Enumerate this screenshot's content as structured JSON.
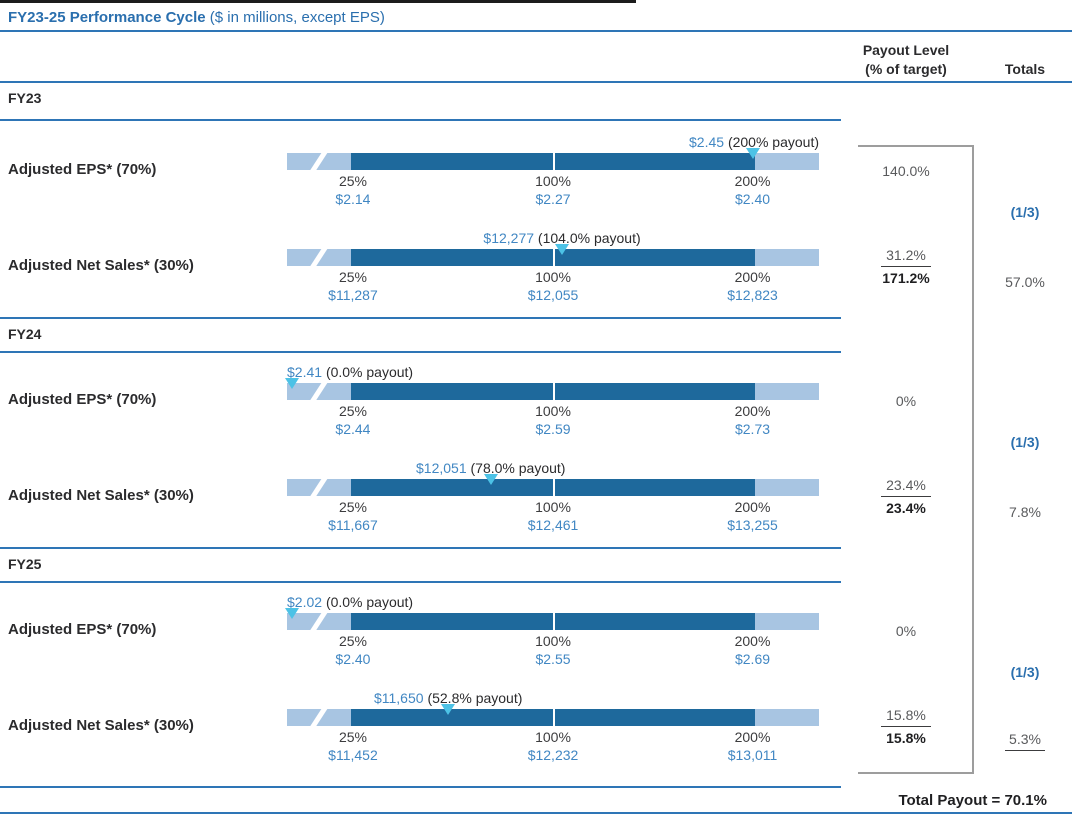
{
  "title": {
    "main": "FY23-25 Performance Cycle",
    "sub": "($ in millions, except EPS)"
  },
  "columns": {
    "payout_line1": "Payout Level",
    "payout_line2": "(% of target)",
    "totals": "Totals"
  },
  "footer": {
    "total_payout": "Total Payout = 70.1%"
  },
  "colors": {
    "accent_blue": "#2e75b6",
    "dark_bar": "#1e699c",
    "light_bar": "#a8c5e2",
    "marker_cyan": "#4cc2e6",
    "value_text_blue": "#4187c3",
    "gray_text": "#595a5c",
    "dark_text": "#231f20",
    "bracket_gray": "#9d9d9d"
  },
  "sections": [
    {
      "year": "FY23",
      "fraction": "(1/3)",
      "total": "57.0%",
      "eps": {
        "label": "Adjusted EPS* (70%)",
        "result_value": "$2.45",
        "result_note": "(200% payout)",
        "marker_pct": 87.5,
        "ticks": [
          {
            "pct": "25%",
            "val": "$2.14"
          },
          {
            "pct": "100%",
            "val": "$2.27"
          },
          {
            "pct": "200%",
            "val": "$2.40"
          }
        ],
        "payout": "140.0%"
      },
      "sales": {
        "label": "Adjusted Net Sales* (30%)",
        "result_value": "$12,277",
        "result_note": "(104.0% payout)",
        "marker_pct": 51.7,
        "ticks": [
          {
            "pct": "25%",
            "val": "$11,287"
          },
          {
            "pct": "100%",
            "val": "$12,055"
          },
          {
            "pct": "200%",
            "val": "$12,823"
          }
        ],
        "payout": "31.2%",
        "payout_sum": "171.2%"
      }
    },
    {
      "year": "FY24",
      "fraction": "(1/3)",
      "total": "7.8%",
      "eps": {
        "label": "Adjusted EPS* (70%)",
        "result_value": "$2.41",
        "result_note": "(0.0% payout)",
        "marker_pct": 0.9,
        "ticks": [
          {
            "pct": "25%",
            "val": "$2.44"
          },
          {
            "pct": "100%",
            "val": "$2.59"
          },
          {
            "pct": "200%",
            "val": "$2.73"
          }
        ],
        "payout": "0%"
      },
      "sales": {
        "label": "Adjusted Net Sales* (30%)",
        "result_value": "$12,051",
        "result_note": "(78.0% payout)",
        "marker_pct": 38.3,
        "ticks": [
          {
            "pct": "25%",
            "val": "$11,667"
          },
          {
            "pct": "100%",
            "val": "$12,461"
          },
          {
            "pct": "200%",
            "val": "$13,255"
          }
        ],
        "payout": "23.4%",
        "payout_sum": "23.4%"
      }
    },
    {
      "year": "FY25",
      "fraction": "(1/3)",
      "total": "5.3%",
      "eps": {
        "label": "Adjusted EPS* (70%)",
        "result_value": "$2.02",
        "result_note": "(0.0% payout)",
        "marker_pct": 0.9,
        "ticks": [
          {
            "pct": "25%",
            "val": "$2.40"
          },
          {
            "pct": "100%",
            "val": "$2.55"
          },
          {
            "pct": "200%",
            "val": "$2.69"
          }
        ],
        "payout": "0%"
      },
      "sales": {
        "label": "Adjusted Net Sales* (30%)",
        "result_value": "$11,650",
        "result_note": "(52.8% payout)",
        "marker_pct": 30.3,
        "ticks": [
          {
            "pct": "25%",
            "val": "$11,452"
          },
          {
            "pct": "100%",
            "val": "$12,232"
          },
          {
            "pct": "200%",
            "val": "$13,011"
          }
        ],
        "payout": "15.8%",
        "payout_sum": "15.8%"
      }
    }
  ],
  "chart_data": {
    "type": "bar",
    "title": "FY23-25 Performance Cycle ($ in millions, except EPS)",
    "subtype": "bullet-payout-scales",
    "scale_ticks_payout_pct": [
      25,
      100,
      200
    ],
    "series": [
      {
        "year": "FY23",
        "metric": "Adjusted EPS* (70%)",
        "threshold_25pct": 2.14,
        "target_100pct": 2.27,
        "max_200pct": 2.4,
        "actual": 2.45,
        "payout_pct": 200.0,
        "weighted_payout_pct": 140.0
      },
      {
        "year": "FY23",
        "metric": "Adjusted Net Sales* (30%)",
        "threshold_25pct": 11287,
        "target_100pct": 12055,
        "max_200pct": 12823,
        "actual": 12277,
        "payout_pct": 104.0,
        "weighted_payout_pct": 31.2
      },
      {
        "year": "FY24",
        "metric": "Adjusted EPS* (70%)",
        "threshold_25pct": 2.44,
        "target_100pct": 2.59,
        "max_200pct": 2.73,
        "actual": 2.41,
        "payout_pct": 0.0,
        "weighted_payout_pct": 0.0
      },
      {
        "year": "FY24",
        "metric": "Adjusted Net Sales* (30%)",
        "threshold_25pct": 11667,
        "target_100pct": 12461,
        "max_200pct": 13255,
        "actual": 12051,
        "payout_pct": 78.0,
        "weighted_payout_pct": 23.4
      },
      {
        "year": "FY25",
        "metric": "Adjusted EPS* (70%)",
        "threshold_25pct": 2.4,
        "target_100pct": 2.55,
        "max_200pct": 2.69,
        "actual": 2.02,
        "payout_pct": 0.0,
        "weighted_payout_pct": 0.0
      },
      {
        "year": "FY25",
        "metric": "Adjusted Net Sales* (30%)",
        "threshold_25pct": 11452,
        "target_100pct": 12232,
        "max_200pct": 13011,
        "actual": 11650,
        "payout_pct": 52.8,
        "weighted_payout_pct": 15.8
      }
    ],
    "year_totals": [
      {
        "year": "FY23",
        "combined_payout_pct": 171.2,
        "weight": "1/3",
        "contribution_pct": 57.0
      },
      {
        "year": "FY24",
        "combined_payout_pct": 23.4,
        "weight": "1/3",
        "contribution_pct": 7.8
      },
      {
        "year": "FY25",
        "combined_payout_pct": 15.8,
        "weight": "1/3",
        "contribution_pct": 5.3
      }
    ],
    "total_payout_pct": 70.1,
    "legend_position": "none",
    "grid": false
  }
}
